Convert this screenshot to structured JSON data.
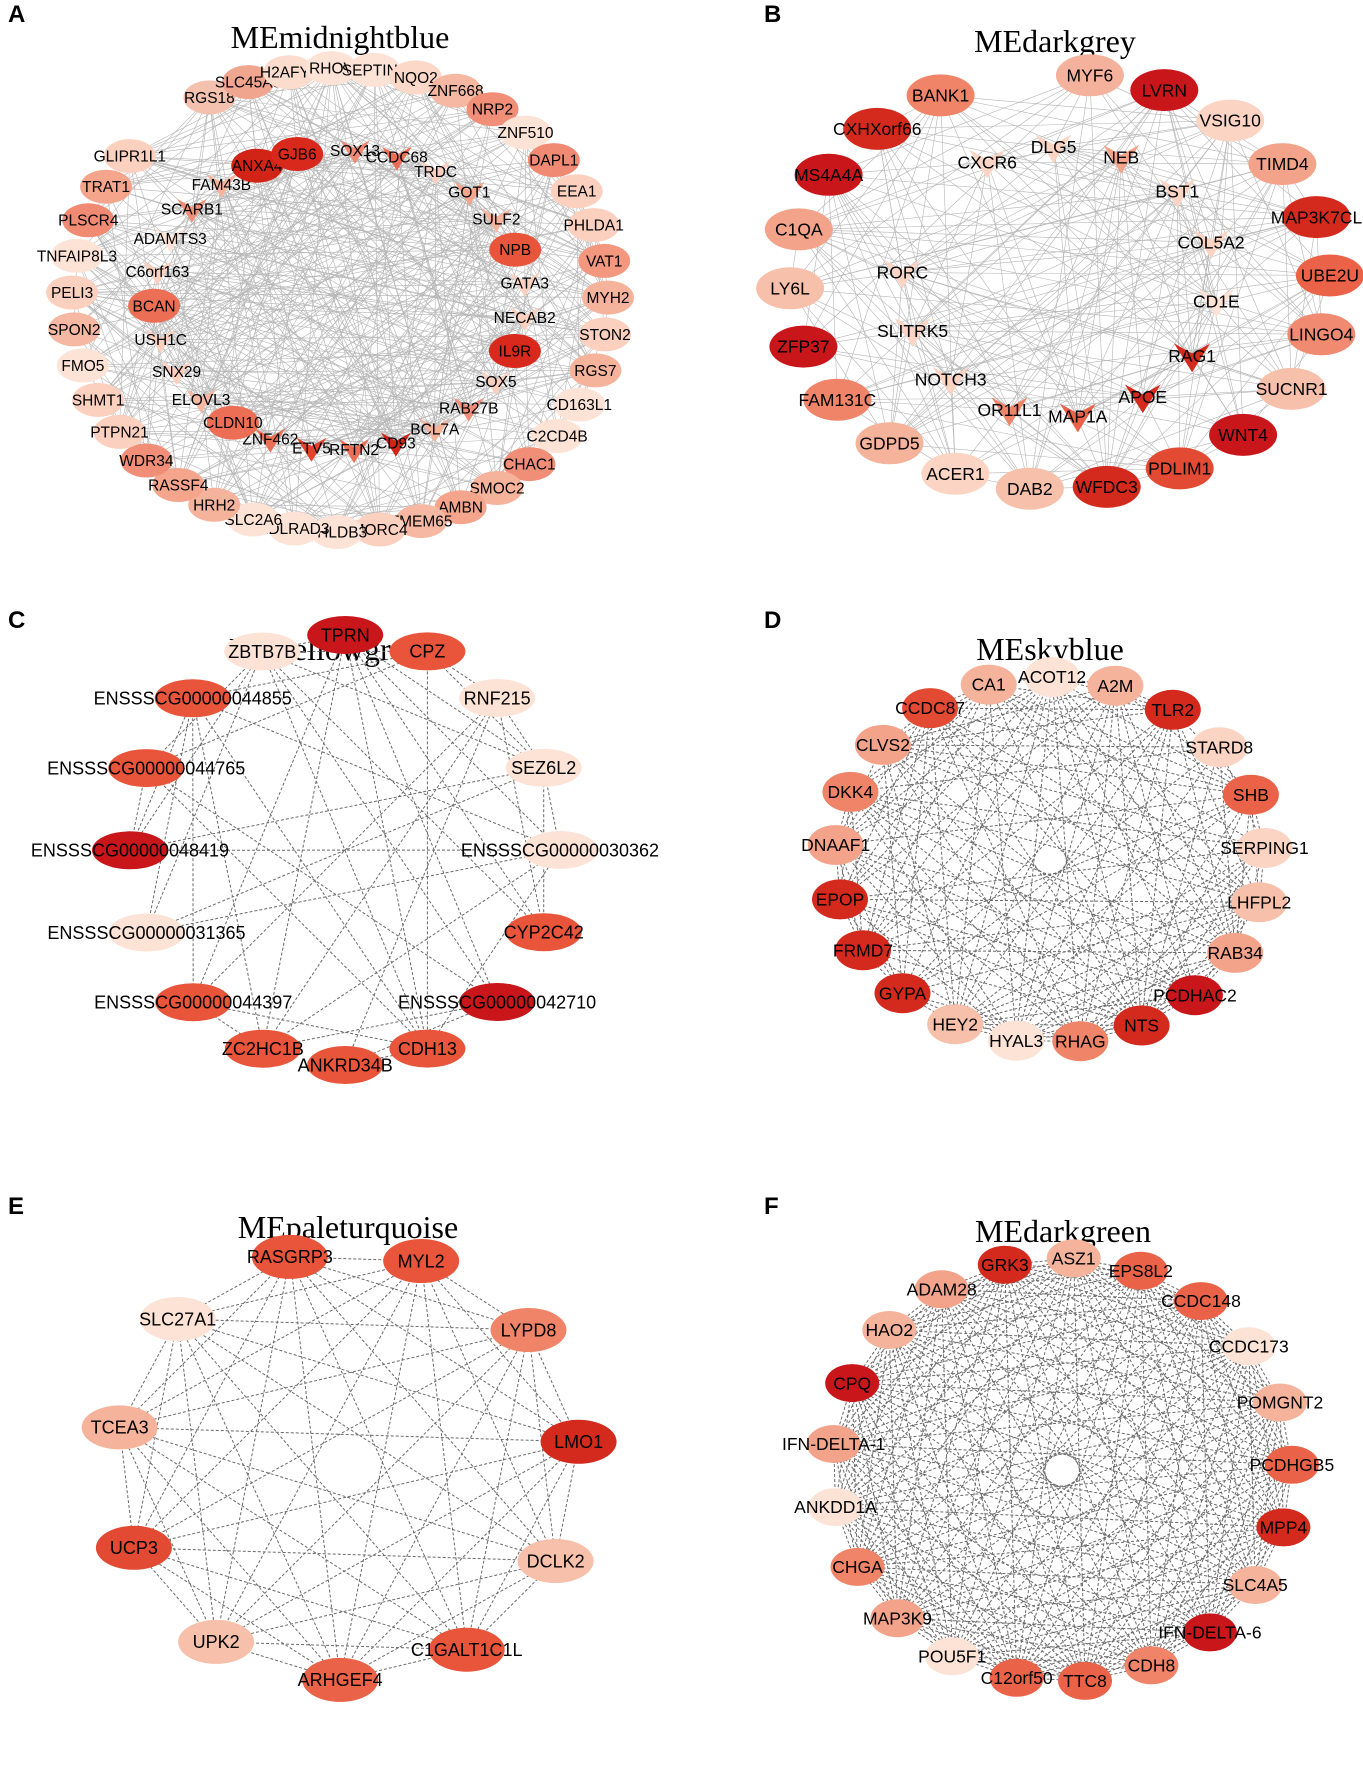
{
  "panels": [
    {
      "letter": "A",
      "title": "MEmidnightblue",
      "edges": "solid",
      "nodes": [
        {
          "label": "RGS18",
          "shape": "ellipse",
          "color": "#f4c1ae"
        },
        {
          "label": "SLC45A3",
          "shape": "ellipse",
          "color": "#f0a58f"
        },
        {
          "label": "H2AFY2",
          "shape": "ellipse",
          "color": "#fcdccd"
        },
        {
          "label": "RHOV",
          "shape": "ellipse",
          "color": "#fde3d6"
        },
        {
          "label": "SEPTIN5",
          "shape": "ellipse",
          "color": "#fde3d6"
        },
        {
          "label": "NQO2",
          "shape": "ellipse",
          "color": "#fbd8c8"
        },
        {
          "label": "ZNF668",
          "shape": "ellipse",
          "color": "#f6b8a2"
        },
        {
          "label": "NRP2",
          "shape": "ellipse",
          "color": "#f08e78"
        },
        {
          "label": "ZNF510",
          "shape": "ellipse",
          "color": "#fde3d6"
        },
        {
          "label": "DAPL1",
          "shape": "ellipse",
          "color": "#f08a73"
        },
        {
          "label": "EEA1",
          "shape": "ellipse",
          "color": "#fbd0bf"
        },
        {
          "label": "PHLDA1",
          "shape": "ellipse",
          "color": "#fbd0bf"
        },
        {
          "label": "VAT1",
          "shape": "ellipse",
          "color": "#f3977f"
        },
        {
          "label": "MYH2",
          "shape": "ellipse",
          "color": "#f6b39c"
        },
        {
          "label": "STON2",
          "shape": "ellipse",
          "color": "#fbd0bf"
        },
        {
          "label": "RGS7",
          "shape": "ellipse",
          "color": "#f6b39c"
        },
        {
          "label": "CD163L1",
          "shape": "ellipse",
          "color": "#fde3d6"
        },
        {
          "label": "C2CD4B",
          "shape": "ellipse",
          "color": "#fde3d6"
        },
        {
          "label": "CHAC1",
          "shape": "ellipse",
          "color": "#f08e78"
        },
        {
          "label": "SMOC2",
          "shape": "ellipse",
          "color": "#f6b39c"
        },
        {
          "label": "AMBN",
          "shape": "ellipse",
          "color": "#f4a58c"
        },
        {
          "label": "TMEM65",
          "shape": "ellipse",
          "color": "#f6b8a2"
        },
        {
          "label": "MORC4",
          "shape": "ellipse",
          "color": "#fbd0bf"
        },
        {
          "label": "PHLDB3",
          "shape": "ellipse",
          "color": "#fde3d6"
        },
        {
          "label": "LDLRAD3",
          "shape": "ellipse",
          "color": "#fde3d6"
        },
        {
          "label": "SLC2A6",
          "shape": "ellipse",
          "color": "#fde3d6"
        },
        {
          "label": "HRH2",
          "shape": "ellipse",
          "color": "#f6b39c"
        },
        {
          "label": "RASSF4",
          "shape": "ellipse",
          "color": "#f4a58c"
        },
        {
          "label": "WDR34",
          "shape": "ellipse",
          "color": "#f08e78"
        },
        {
          "label": "PTPN21",
          "shape": "ellipse",
          "color": "#fbd0bf"
        },
        {
          "label": "SHMT1",
          "shape": "ellipse",
          "color": "#fbd0bf"
        },
        {
          "label": "FMO5",
          "shape": "ellipse",
          "color": "#fde3d6"
        },
        {
          "label": "SPON2",
          "shape": "ellipse",
          "color": "#f6b8a2"
        },
        {
          "label": "PELI3",
          "shape": "ellipse",
          "color": "#fbd0bf"
        },
        {
          "label": "TNFAIP8L3",
          "shape": "ellipse",
          "color": "#fde3d6"
        },
        {
          "label": "PLSCR4",
          "shape": "ellipse",
          "color": "#f08a73"
        },
        {
          "label": "TRAT1",
          "shape": "ellipse",
          "color": "#f4a58c"
        },
        {
          "label": "GLIPR1L1",
          "shape": "ellipse",
          "color": "#fbd0bf"
        },
        {
          "label": "SOX13",
          "shape": "vee",
          "color": "#f08a73"
        },
        {
          "label": "CCDC68",
          "shape": "vee",
          "color": "#ec6f55"
        },
        {
          "label": "TRDC",
          "shape": "vee",
          "color": "#fbd0bf"
        },
        {
          "label": "GOT1",
          "shape": "vee",
          "color": "#f4a58c"
        },
        {
          "label": "SULF2",
          "shape": "vee",
          "color": "#f6b39c"
        },
        {
          "label": "NPB",
          "shape": "ellipse",
          "color": "#e8553b"
        },
        {
          "label": "GATA3",
          "shape": "vee",
          "color": "#fbd0bf"
        },
        {
          "label": "NECAB2",
          "shape": "vee",
          "color": "#fbd0bf"
        },
        {
          "label": "IL9R",
          "shape": "ellipse",
          "color": "#d9291c"
        },
        {
          "label": "SOX5",
          "shape": "vee",
          "color": "#fbd0bf"
        },
        {
          "label": "RAB27B",
          "shape": "vee",
          "color": "#f08e78"
        },
        {
          "label": "BCL7A",
          "shape": "vee",
          "color": "#f6b39c"
        },
        {
          "label": "CD93",
          "shape": "vee",
          "color": "#d12316"
        },
        {
          "label": "RFTN2",
          "shape": "vee",
          "color": "#ec6f55"
        },
        {
          "label": "ETV5",
          "shape": "vee",
          "color": "#e3432d"
        },
        {
          "label": "ZNF462",
          "shape": "vee",
          "color": "#ec6f55"
        },
        {
          "label": "CLDN10",
          "shape": "ellipse",
          "color": "#ec6f55"
        },
        {
          "label": "ELOVL3",
          "shape": "vee",
          "color": "#f6b8a2"
        },
        {
          "label": "SNX29",
          "shape": "vee",
          "color": "#fbd0bf"
        },
        {
          "label": "USH1C",
          "shape": "vee",
          "color": "#fbd0bf"
        },
        {
          "label": "BCAN",
          "shape": "ellipse",
          "color": "#ec6f55"
        },
        {
          "label": "C6orf163",
          "shape": "vee",
          "color": "#fbd0bf"
        },
        {
          "label": "ADAMTS3",
          "shape": "vee",
          "color": "#fde3d6"
        },
        {
          "label": "SCARB1",
          "shape": "vee",
          "color": "#f08e78"
        },
        {
          "label": "FAM43B",
          "shape": "vee",
          "color": "#f6b39c"
        },
        {
          "label": "ANXA4",
          "shape": "ellipse",
          "color": "#d12316"
        },
        {
          "label": "GJB6",
          "shape": "ellipse",
          "color": "#d9291c"
        }
      ]
    },
    {
      "letter": "B",
      "title": "MEdarkgrey",
      "edges": "solid",
      "nodes": [
        {
          "label": "MYF6",
          "shape": "ellipse",
          "color": "#f4b29c"
        },
        {
          "label": "LVRN",
          "shape": "ellipse",
          "color": "#c9161b"
        },
        {
          "label": "VSIG10",
          "shape": "ellipse",
          "color": "#fbd4c3"
        },
        {
          "label": "TIMD4",
          "shape": "ellipse",
          "color": "#f4a38b"
        },
        {
          "label": "MAP3K7CL",
          "shape": "ellipse",
          "color": "#d42a1e"
        },
        {
          "label": "UBE2U",
          "shape": "ellipse",
          "color": "#ea6348"
        },
        {
          "label": "LINGO4",
          "shape": "ellipse",
          "color": "#f08b72"
        },
        {
          "label": "SUCNR1",
          "shape": "ellipse",
          "color": "#f7c0aa"
        },
        {
          "label": "WNT4",
          "shape": "ellipse",
          "color": "#c9161b"
        },
        {
          "label": "PDLIM1",
          "shape": "ellipse",
          "color": "#e24a33"
        },
        {
          "label": "WFDC3",
          "shape": "ellipse",
          "color": "#d42a1e"
        },
        {
          "label": "DAB2",
          "shape": "ellipse",
          "color": "#f7c0aa"
        },
        {
          "label": "ACER1",
          "shape": "ellipse",
          "color": "#fbd4c3"
        },
        {
          "label": "GDPD5",
          "shape": "ellipse",
          "color": "#f6b39c"
        },
        {
          "label": "FAM131C",
          "shape": "ellipse",
          "color": "#ef8468"
        },
        {
          "label": "ZFP37",
          "shape": "ellipse",
          "color": "#c9161b"
        },
        {
          "label": "LY6L",
          "shape": "ellipse",
          "color": "#f7c0aa"
        },
        {
          "label": "C1QA",
          "shape": "ellipse",
          "color": "#f4a38b"
        },
        {
          "label": "MS4A4A",
          "shape": "ellipse",
          "color": "#c9161b"
        },
        {
          "label": "CXHXorf66",
          "shape": "ellipse",
          "color": "#d42a1e"
        },
        {
          "label": "BANK1",
          "shape": "ellipse",
          "color": "#ef8468"
        },
        {
          "label": "CXCR6",
          "shape": "vee",
          "color": "#fbd4c3"
        },
        {
          "label": "DLG5",
          "shape": "vee",
          "color": "#fbd4c3"
        },
        {
          "label": "NEB",
          "shape": "vee",
          "color": "#f4a38b"
        },
        {
          "label": "BST1",
          "shape": "vee",
          "color": "#fbd4c3"
        },
        {
          "label": "COL5A2",
          "shape": "vee",
          "color": "#fbd4c3"
        },
        {
          "label": "CD1E",
          "shape": "vee",
          "color": "#fde3d6"
        },
        {
          "label": "RAG1",
          "shape": "vee",
          "color": "#d42a1e"
        },
        {
          "label": "APOE",
          "shape": "vee",
          "color": "#d42a1e"
        },
        {
          "label": "MAP1A",
          "shape": "vee",
          "color": "#ea6348"
        },
        {
          "label": "OR11L1",
          "shape": "vee",
          "color": "#ef8468"
        },
        {
          "label": "NOTCH3",
          "shape": "vee",
          "color": "#fbd4c3"
        },
        {
          "label": "SLITRK5",
          "shape": "vee",
          "color": "#fbd4c3"
        },
        {
          "label": "RORC",
          "shape": "vee",
          "color": "#fbd4c3"
        }
      ]
    },
    {
      "letter": "C",
      "title": "MEyellowgreen",
      "edges": "dashed",
      "nodes": [
        {
          "label": "TPRN",
          "shape": "ellipse",
          "color": "#c9161b"
        },
        {
          "label": "CPZ",
          "shape": "ellipse",
          "color": "#e8553b"
        },
        {
          "label": "RNF215",
          "shape": "ellipse",
          "color": "#fde3d6"
        },
        {
          "label": "SEZ6L2",
          "shape": "ellipse",
          "color": "#fde3d6"
        },
        {
          "label": "ENSSSCG00000030362",
          "shape": "ellipse",
          "color": "#fde3d6"
        },
        {
          "label": "CYP2C42",
          "shape": "ellipse",
          "color": "#e8553b"
        },
        {
          "label": "ENSSSCG00000042710",
          "shape": "ellipse",
          "color": "#c9161b"
        },
        {
          "label": "CDH13",
          "shape": "ellipse",
          "color": "#e8553b"
        },
        {
          "label": "ANKRD34B",
          "shape": "ellipse",
          "color": "#e8553b"
        },
        {
          "label": "ZC2HC1B",
          "shape": "ellipse",
          "color": "#e8553b"
        },
        {
          "label": "ENSSSCG00000044397",
          "shape": "ellipse",
          "color": "#e8553b"
        },
        {
          "label": "ENSSSCG00000031365",
          "shape": "ellipse",
          "color": "#fde3d6"
        },
        {
          "label": "ENSSSCG00000048419",
          "shape": "ellipse",
          "color": "#c9161b"
        },
        {
          "label": "ENSSSCG00000044765",
          "shape": "ellipse",
          "color": "#e8553b"
        },
        {
          "label": "ENSSSCG00000044855",
          "shape": "ellipse",
          "color": "#e8553b"
        },
        {
          "label": "ZBTB7B",
          "shape": "ellipse",
          "color": "#fde3d6"
        }
      ]
    },
    {
      "letter": "D",
      "title": "MEskyblue",
      "edges": "dashed",
      "nodes": [
        {
          "label": "CA1",
          "shape": "ellipse",
          "color": "#f6b39c"
        },
        {
          "label": "ACOT12",
          "shape": "ellipse",
          "color": "#fde3d6"
        },
        {
          "label": "A2M",
          "shape": "ellipse",
          "color": "#f6b39c"
        },
        {
          "label": "TLR2",
          "shape": "ellipse",
          "color": "#d42a1e"
        },
        {
          "label": "STARD8",
          "shape": "ellipse",
          "color": "#fbd4c3"
        },
        {
          "label": "SHB",
          "shape": "ellipse",
          "color": "#ea6348"
        },
        {
          "label": "SERPING1",
          "shape": "ellipse",
          "color": "#fbd4c3"
        },
        {
          "label": "LHFPL2",
          "shape": "ellipse",
          "color": "#f7c0aa"
        },
        {
          "label": "RAB34",
          "shape": "ellipse",
          "color": "#f4a38b"
        },
        {
          "label": "PCDHAC2",
          "shape": "ellipse",
          "color": "#c9161b"
        },
        {
          "label": "NTS",
          "shape": "ellipse",
          "color": "#d42a1e"
        },
        {
          "label": "RHAG",
          "shape": "ellipse",
          "color": "#ef8468"
        },
        {
          "label": "HYAL3",
          "shape": "ellipse",
          "color": "#fde3d6"
        },
        {
          "label": "HEY2",
          "shape": "ellipse",
          "color": "#f7c0aa"
        },
        {
          "label": "GYPA",
          "shape": "ellipse",
          "color": "#d42a1e"
        },
        {
          "label": "FRMD7",
          "shape": "ellipse",
          "color": "#d42a1e"
        },
        {
          "label": "EPOP",
          "shape": "ellipse",
          "color": "#d42a1e"
        },
        {
          "label": "DNAAF1",
          "shape": "ellipse",
          "color": "#f4a38b"
        },
        {
          "label": "DKK4",
          "shape": "ellipse",
          "color": "#ef8468"
        },
        {
          "label": "CLVS2",
          "shape": "ellipse",
          "color": "#f4a38b"
        },
        {
          "label": "CCDC87",
          "shape": "ellipse",
          "color": "#e24a33"
        }
      ]
    },
    {
      "letter": "E",
      "title": "MEpaleturquoise",
      "edges": "dashed",
      "nodes": [
        {
          "label": "MYL2",
          "shape": "ellipse",
          "color": "#e8553b"
        },
        {
          "label": "LYPD8",
          "shape": "ellipse",
          "color": "#ef8468"
        },
        {
          "label": "LMO1",
          "shape": "ellipse",
          "color": "#d42a1e"
        },
        {
          "label": "DCLK2",
          "shape": "ellipse",
          "color": "#f7c0aa"
        },
        {
          "label": "C1GALT1C1L",
          "shape": "ellipse",
          "color": "#e8553b"
        },
        {
          "label": "ARHGEF4",
          "shape": "ellipse",
          "color": "#ea6348"
        },
        {
          "label": "UPK2",
          "shape": "ellipse",
          "color": "#f7c0aa"
        },
        {
          "label": "UCP3",
          "shape": "ellipse",
          "color": "#e24a33"
        },
        {
          "label": "TCEA3",
          "shape": "ellipse",
          "color": "#f6b39c"
        },
        {
          "label": "SLC27A1",
          "shape": "ellipse",
          "color": "#fde3d6"
        },
        {
          "label": "RASGRP3",
          "shape": "ellipse",
          "color": "#e8553b"
        }
      ]
    },
    {
      "letter": "F",
      "title": "MEdarkgreen",
      "edges": "dashed",
      "nodes": [
        {
          "label": "ASZ1",
          "shape": "ellipse",
          "color": "#f6b39c"
        },
        {
          "label": "EPS8L2",
          "shape": "ellipse",
          "color": "#ea6348"
        },
        {
          "label": "CCDC148",
          "shape": "ellipse",
          "color": "#ea6348"
        },
        {
          "label": "CCDC173",
          "shape": "ellipse",
          "color": "#fde3d6"
        },
        {
          "label": "POMGNT2",
          "shape": "ellipse",
          "color": "#f6b39c"
        },
        {
          "label": "PCDHGB5",
          "shape": "ellipse",
          "color": "#ea6348"
        },
        {
          "label": "MPP4",
          "shape": "ellipse",
          "color": "#d42a1e"
        },
        {
          "label": "SLC4A5",
          "shape": "ellipse",
          "color": "#f6b39c"
        },
        {
          "label": "IFN-DELTA-6",
          "shape": "ellipse",
          "color": "#c9161b"
        },
        {
          "label": "CDH8",
          "shape": "ellipse",
          "color": "#ef8468"
        },
        {
          "label": "TTC8",
          "shape": "ellipse",
          "color": "#ea6348"
        },
        {
          "label": "C12orf50",
          "shape": "ellipse",
          "color": "#ea6348"
        },
        {
          "label": "POU5F1",
          "shape": "ellipse",
          "color": "#fde3d6"
        },
        {
          "label": "MAP3K9",
          "shape": "ellipse",
          "color": "#f4a38b"
        },
        {
          "label": "CHGA",
          "shape": "ellipse",
          "color": "#ef8468"
        },
        {
          "label": "ANKDD1A",
          "shape": "ellipse",
          "color": "#fde3d6"
        },
        {
          "label": "IFN-DELTA-1",
          "shape": "ellipse",
          "color": "#f4a38b"
        },
        {
          "label": "CPQ",
          "shape": "ellipse",
          "color": "#c9161b"
        },
        {
          "label": "HAO2",
          "shape": "ellipse",
          "color": "#f6b39c"
        },
        {
          "label": "ADAM28",
          "shape": "ellipse",
          "color": "#f4a38b"
        },
        {
          "label": "GRK3",
          "shape": "ellipse",
          "color": "#d42a1e"
        }
      ]
    }
  ]
}
